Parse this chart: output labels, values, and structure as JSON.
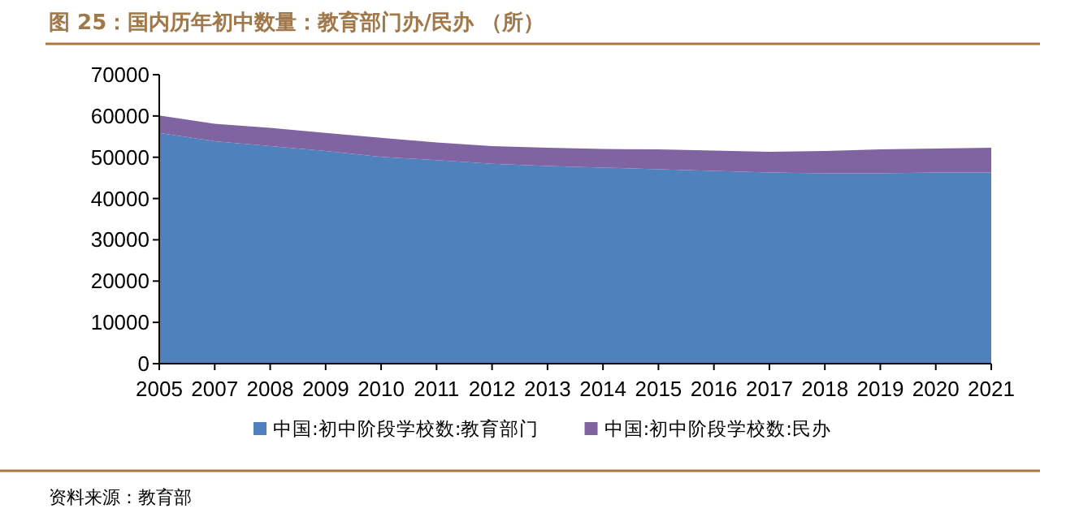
{
  "chart_data": {
    "type": "area",
    "stacked": true,
    "title": "图 25：国内历年初中数量：教育部门办/民办 （所）",
    "annotations": [
      "资料来源：教育部"
    ],
    "categories": [
      "2005",
      "2007",
      "2008",
      "2009",
      "2010",
      "2011",
      "2012",
      "2013",
      "2014",
      "2015",
      "2016",
      "2017",
      "2018",
      "2019",
      "2020",
      "2021"
    ],
    "series": [
      {
        "name": "中国:初中阶段学校数:教育部门",
        "color": "#4f81bd",
        "values": [
          55900,
          53900,
          52700,
          51500,
          50100,
          49300,
          48400,
          47900,
          47500,
          47100,
          46700,
          46300,
          46100,
          46100,
          46300,
          46300
        ]
      },
      {
        "name": "中国:初中阶段学校数:民办",
        "color": "#8064a2",
        "values": [
          4200,
          4200,
          4400,
          4400,
          4600,
          4300,
          4300,
          4400,
          4500,
          4800,
          4900,
          5000,
          5400,
          5800,
          5800,
          6000
        ]
      }
    ],
    "ylim": [
      0,
      70000
    ],
    "yticks": [
      0,
      10000,
      20000,
      30000,
      40000,
      50000,
      60000,
      70000
    ],
    "legend": "bottom"
  }
}
